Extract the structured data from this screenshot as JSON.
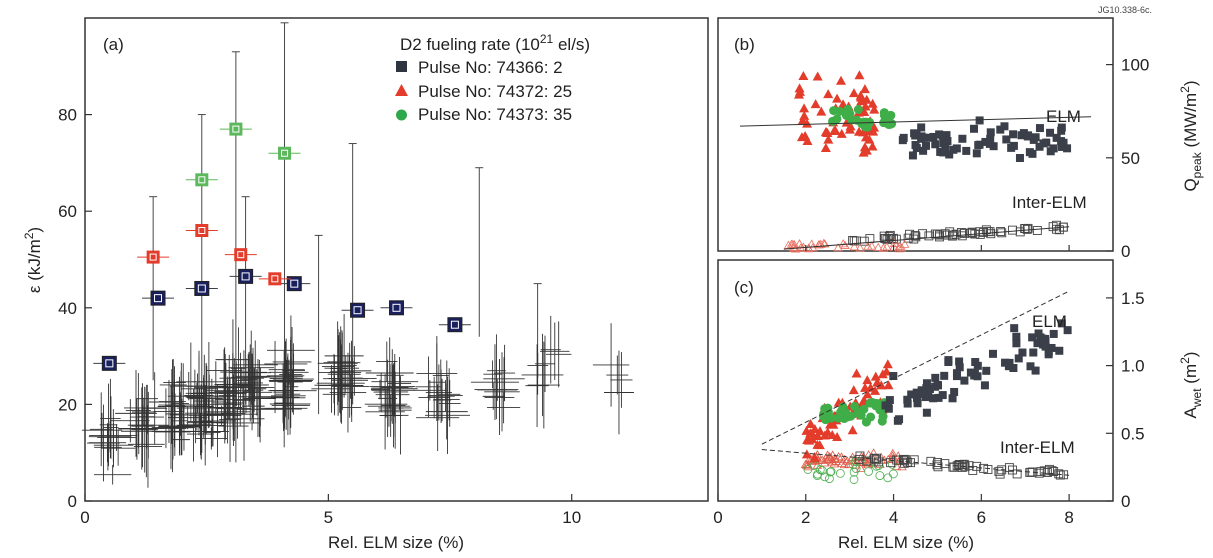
{
  "figure_id": "JG10.338-6c.",
  "chart_data": [
    {
      "panel": "(a)",
      "type": "scatter",
      "xlabel": "Rel. ELM size (%)",
      "ylabel": "ε (kJ/m²)",
      "xlim": [
        0,
        12.8
      ],
      "ylim": [
        0,
        100
      ],
      "xticks": [
        "0",
        "5",
        "10"
      ],
      "yticks": [
        "0",
        "20",
        "40",
        "60",
        "80"
      ],
      "legend_title": "D2 fueling rate (10²¹ el/s)",
      "legend_placement": "top-right",
      "series": [
        {
          "name": "Pulse No: 74366: 2",
          "color": "#3a3f49",
          "marker": "square",
          "points": [
            [
              0.5,
              28.5
            ],
            [
              1.5,
              42
            ],
            [
              2.4,
              44
            ],
            [
              3.3,
              46.5
            ],
            [
              4.3,
              45
            ],
            [
              5.6,
              39.5
            ],
            [
              6.4,
              40
            ],
            [
              7.6,
              36.5
            ]
          ]
        },
        {
          "name": "Pulse No: 74372: 25",
          "color": "#e33c2b",
          "marker": "square",
          "points": [
            [
              1.4,
              50.5
            ],
            [
              2.4,
              56
            ],
            [
              3.2,
              51
            ],
            [
              3.9,
              46
            ]
          ]
        },
        {
          "name": "Pulse No: 74373: 35",
          "color": "#5cb85c",
          "marker": "square",
          "points": [
            [
              2.4,
              66.5
            ],
            [
              3.1,
              77
            ],
            [
              4.1,
              72
            ]
          ]
        }
      ],
      "legend_markers": [
        "square",
        "triangle",
        "circle"
      ]
    },
    {
      "panel": "(b)",
      "type": "scatter",
      "ylabel": "Q_peak (MW/m²)",
      "xlim": [
        0,
        9
      ],
      "ylim": [
        0,
        125
      ],
      "yticks": [
        "0",
        "50",
        "100"
      ],
      "annotations": [
        "ELM",
        "Inter-ELM"
      ],
      "trend_elm": [
        [
          0.5,
          67
        ],
        [
          8.5,
          72
        ]
      ],
      "trend_inter": [
        [
          1.5,
          1
        ],
        [
          8.0,
          13
        ]
      ]
    },
    {
      "panel": "(c)",
      "type": "scatter",
      "xlabel": "Rel. ELM size (%)",
      "ylabel": "A_wet (m²)",
      "xlim": [
        0,
        9
      ],
      "ylim": [
        0,
        1.78
      ],
      "xticks": [
        "0",
        "2",
        "4",
        "6",
        "8"
      ],
      "yticks": [
        "0",
        "0.5",
        "1.0",
        "1.5"
      ],
      "annotations": [
        "ELM",
        "Inter-ELM"
      ],
      "trend_elm": [
        [
          1.0,
          0.42
        ],
        [
          8.0,
          1.55
        ]
      ],
      "trend_inter": [
        [
          1.0,
          0.38
        ],
        [
          8.0,
          0.19
        ]
      ]
    }
  ],
  "text": {
    "panel_a": "(a)",
    "panel_b": "(b)",
    "panel_c": "(c)",
    "legend_title_pre": "D2 fueling rate (10",
    "legend_title_sup": "21",
    "legend_title_post": " el/s)",
    "legend1": "Pulse No: 74366: 2",
    "legend2": "Pulse No: 74372: 25",
    "legend3": "Pulse No: 74373: 35",
    "xlabel": "Rel. ELM size (%)",
    "ylabel_a_pre": "ε (kJ/m",
    "ylabel_a_sup": "2",
    "ylabel_a_post": ")",
    "ylabel_b_pre": "Q",
    "ylabel_b_sub": "peak",
    "ylabel_b_post": " (MW/m",
    "ylabel_b_sup": "2",
    "ylabel_b_end": ")",
    "ylabel_c_pre": "A",
    "ylabel_c_sub": "wet",
    "ylabel_c_post": " (m",
    "ylabel_c_sup": "2",
    "ylabel_c_end": ")",
    "elm_b": "ELM",
    "inter_b": "Inter-ELM",
    "elm_c": "ELM",
    "inter_c": "Inter-ELM",
    "fig_id": "JG10.338-6c."
  },
  "colors": {
    "dark": "#3a3f49",
    "red": "#e33c2b",
    "green": "#5cb85c",
    "navy": "#1a1f5e"
  }
}
